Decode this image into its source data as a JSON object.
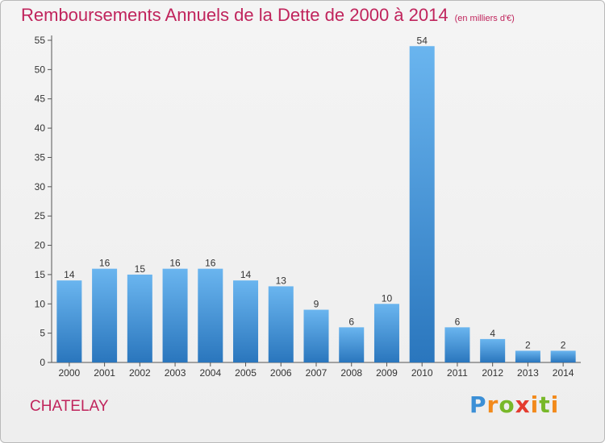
{
  "chart_data": {
    "type": "bar",
    "title": "Remboursements Annuels de la Dette de 2000 à 2014",
    "unit_note": "(en milliers d'€)",
    "categories": [
      "2000",
      "2001",
      "2002",
      "2003",
      "2004",
      "2005",
      "2006",
      "2007",
      "2008",
      "2009",
      "2010",
      "2011",
      "2012",
      "2013",
      "2014"
    ],
    "values": [
      14,
      16,
      15,
      16,
      16,
      14,
      13,
      9,
      6,
      10,
      54,
      6,
      4,
      2,
      2
    ],
    "ylim": [
      0,
      55
    ],
    "yticks": [
      0,
      5,
      10,
      15,
      20,
      25,
      30,
      35,
      40,
      45,
      50,
      55
    ],
    "grid": false,
    "bar_color": "#3d8fd4"
  },
  "footer": {
    "city": "CHATELAY",
    "logo": "Proxiti"
  },
  "colors": {
    "title": "#c0245c",
    "bar_top": "#6ab5ef",
    "bar_bottom": "#2a76bd"
  }
}
